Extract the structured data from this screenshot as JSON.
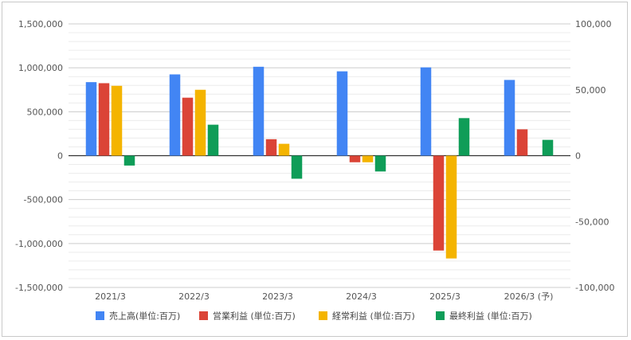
{
  "chart_data": {
    "type": "bar",
    "categories": [
      "2021/3",
      "2022/3",
      "2023/3",
      "2024/3",
      "2025/3",
      "2026/3 (予)"
    ],
    "series": [
      {
        "name": "売上高(単位:百万)",
        "axis": "left",
        "color": "#4285f4",
        "values": [
          837000,
          925000,
          1012000,
          960000,
          1005000,
          862000
        ]
      },
      {
        "name": "営業利益 (単位:百万)",
        "axis": "right",
        "color": "#db4437",
        "values": [
          55000,
          44000,
          12500,
          -5000,
          -72000,
          20000
        ]
      },
      {
        "name": "経常利益 (単位:百万)",
        "axis": "right",
        "color": "#f4b400",
        "values": [
          53000,
          50000,
          9000,
          -5000,
          -78000,
          null
        ]
      },
      {
        "name": "最終利益 (単位:百万)",
        "axis": "right",
        "color": "#0f9d58",
        "values": [
          -7500,
          23500,
          -17500,
          -12000,
          28500,
          12000
        ]
      }
    ],
    "left_axis": {
      "ylim": [
        -1500000,
        1500000
      ],
      "ticks": [
        "1,500,000",
        "1,000,000",
        "500,000",
        "0",
        "-500,000",
        "-1,000,000",
        "-1,500,000"
      ]
    },
    "right_axis": {
      "ylim": [
        -100000,
        100000
      ],
      "ticks": [
        "100,000",
        "50,000",
        "0",
        "-50,000",
        "-100,000"
      ]
    },
    "grid": true,
    "legend_position": "bottom"
  }
}
